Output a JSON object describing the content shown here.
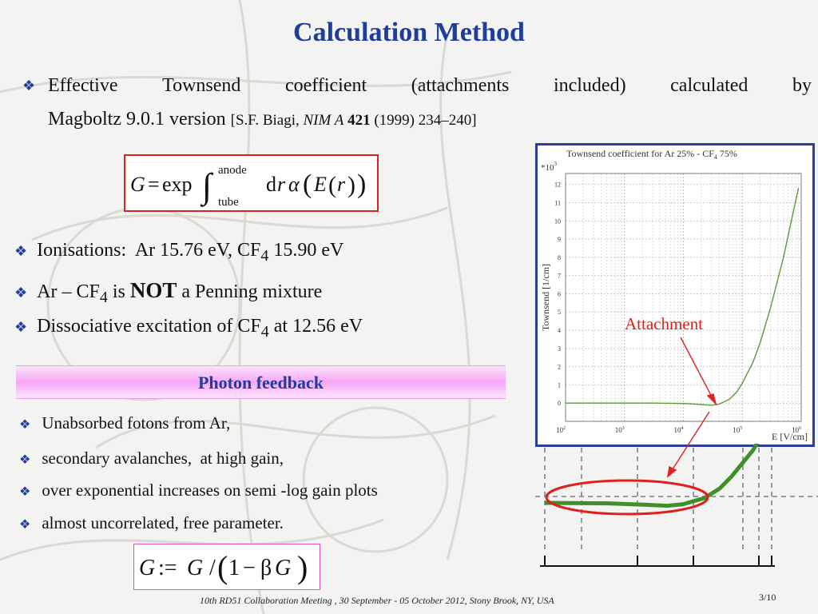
{
  "slide": {
    "title": "Calculation Method",
    "bullet1": {
      "words": [
        "Effective",
        "Townsend",
        "coefficient",
        "(attachments",
        "included)",
        "calculated",
        "by"
      ],
      "line2": "Magboltz 9.0.1 version ",
      "ref_authors": "[S.F. Biagi, ",
      "ref_journal": "NIM A",
      "ref_volume": " 421",
      "ref_rest": " (1999) 234–240]"
    },
    "formula_gain": {
      "G": "G",
      "eq": "=",
      "exp": "exp",
      "upper": "anode",
      "lower": "tube",
      "d": "d",
      "r": "r",
      "alpha": "α",
      "E": "E"
    },
    "bullets_mid": [
      {
        "pre": "Ionisations:  Ar 15.76 eV, CF",
        "sub": "4",
        "post": " 15.90 eV"
      },
      {
        "pre": "Ar – CF",
        "sub": "4",
        "mid": " is ",
        "bold": "NOT",
        "post": " a Penning mixture"
      },
      {
        "pre": "Dissociative excitation of CF",
        "sub": "4",
        "post": " at 12.56 eV"
      }
    ],
    "photon_feedback": "Photon feedback",
    "bullets_low": [
      "Unabsorbed fotons from Ar,",
      "secondary avalanches,  at high gain,",
      "over exponential increases on semi -log gain plots",
      "almost uncorrelated, free parameter."
    ],
    "formula_feedback": {
      "G1": "G",
      "assign": ":=",
      "G2": "G",
      "slash": "/",
      "one": "1",
      "minus": "−",
      "beta": "β",
      "G3": "G"
    },
    "footer": "10th RD51 Collaboration Meeting , 30 September - 05 October 2012, Stony Brook, NY, USA",
    "page_number": "3/10",
    "attachment_label": "Attachment"
  },
  "chart_data": {
    "type": "line",
    "title_pre": "Townsend coefficient for Ar 25% - CF",
    "title_sub": "4",
    "title_post": " 75%",
    "ylabel": "Townsend [1/cm]",
    "yscale_label": "*10",
    "yscale_exp": "3",
    "xlabel": "E [V/cm]",
    "xscale": "log",
    "xlim": [
      100,
      1000000
    ],
    "ylim": [
      -1,
      12.6
    ],
    "y_ticks": [
      0,
      1,
      2,
      3,
      4,
      5,
      6,
      7,
      8,
      9,
      10,
      11,
      12
    ],
    "x_tick_base": "10",
    "x_tick_exps": [
      "2",
      "3",
      "4",
      "5",
      "6"
    ],
    "grid": true,
    "series_color": "#5b9a3a",
    "series": [
      {
        "x": [
          100,
          300,
          1000,
          3000,
          10000,
          20000,
          30000,
          40000,
          60000,
          80000,
          100000,
          150000,
          200000,
          300000,
          500000,
          700000,
          900000
        ],
        "y": [
          0,
          0,
          0,
          0,
          -0.02,
          -0.08,
          -0.12,
          -0.06,
          0.2,
          0.6,
          1.1,
          2.2,
          3.3,
          5.2,
          8,
          10.2,
          11.8
        ]
      }
    ]
  },
  "zoom_inset": {
    "series_color": "#3f8f2a"
  }
}
